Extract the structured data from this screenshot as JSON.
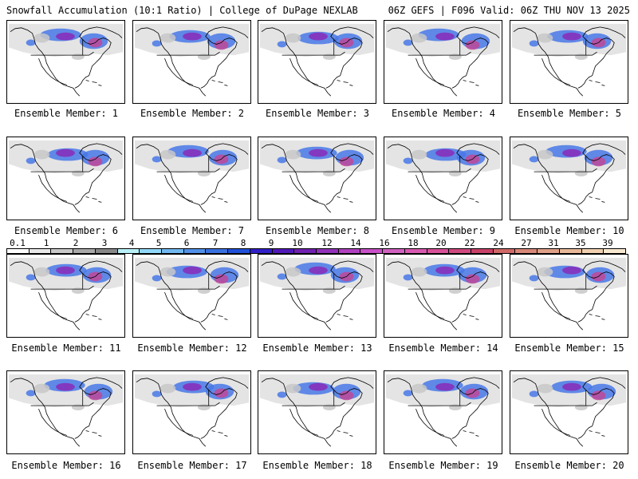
{
  "header": {
    "left": "Snowfall Accumulation (10:1 Ratio) | College of DuPage NEXLAB",
    "right": "06Z GEFS | F096 Valid: 06Z THU NOV 13 2025"
  },
  "panels": [
    {
      "member": 1,
      "caption": "Ensemble Member: 1"
    },
    {
      "member": 2,
      "caption": "Ensemble Member: 2"
    },
    {
      "member": 3,
      "caption": "Ensemble Member: 3"
    },
    {
      "member": 4,
      "caption": "Ensemble Member: 4"
    },
    {
      "member": 5,
      "caption": "Ensemble Member: 5"
    },
    {
      "member": 6,
      "caption": "Ensemble Member: 6"
    },
    {
      "member": 7,
      "caption": "Ensemble Member: 7"
    },
    {
      "member": 8,
      "caption": "Ensemble Member: 8"
    },
    {
      "member": 9,
      "caption": "Ensemble Member: 9"
    },
    {
      "member": 10,
      "caption": "Ensemble Member: 10"
    },
    {
      "member": 11,
      "caption": "Ensemble Member: 11"
    },
    {
      "member": 12,
      "caption": "Ensemble Member: 12"
    },
    {
      "member": 13,
      "caption": "Ensemble Member: 13"
    },
    {
      "member": 14,
      "caption": "Ensemble Member: 14"
    },
    {
      "member": 15,
      "caption": "Ensemble Member: 15"
    },
    {
      "member": 16,
      "caption": "Ensemble Member: 16"
    },
    {
      "member": 17,
      "caption": "Ensemble Member: 17"
    },
    {
      "member": 18,
      "caption": "Ensemble Member: 18"
    },
    {
      "member": 19,
      "caption": "Ensemble Member: 19"
    },
    {
      "member": 20,
      "caption": "Ensemble Member: 20"
    }
  ],
  "legend": {
    "labels": [
      "0.1",
      "1",
      "2",
      "3",
      "4",
      "5",
      "6",
      "7",
      "8",
      "9",
      "10",
      "12",
      "14",
      "16",
      "18",
      "20",
      "22",
      "24",
      "27",
      "31",
      "35",
      "39"
    ],
    "colors": [
      "#ffffff",
      "#e8e8e8",
      "#c8c8c8",
      "#a8a8a8",
      "#888888",
      "#b8f0f8",
      "#90d8f8",
      "#70b8f0",
      "#5090e8",
      "#3870e0",
      "#2050d8",
      "#3020c8",
      "#5018b8",
      "#7020b0",
      "#9030b8",
      "#b040c0",
      "#c850c8",
      "#d060c0",
      "#d858b0",
      "#d85098",
      "#d04880",
      "#c84068",
      "#d06868",
      "#d88878",
      "#e0a088",
      "#e8b898",
      "#f0d0b0",
      "#f8e8d0"
    ]
  },
  "colors": {
    "snow_light": "#c8c8c8",
    "snow_mid": "#4878e8",
    "snow_heavy": "#8a2ab8",
    "snow_peak": "#c04898"
  }
}
